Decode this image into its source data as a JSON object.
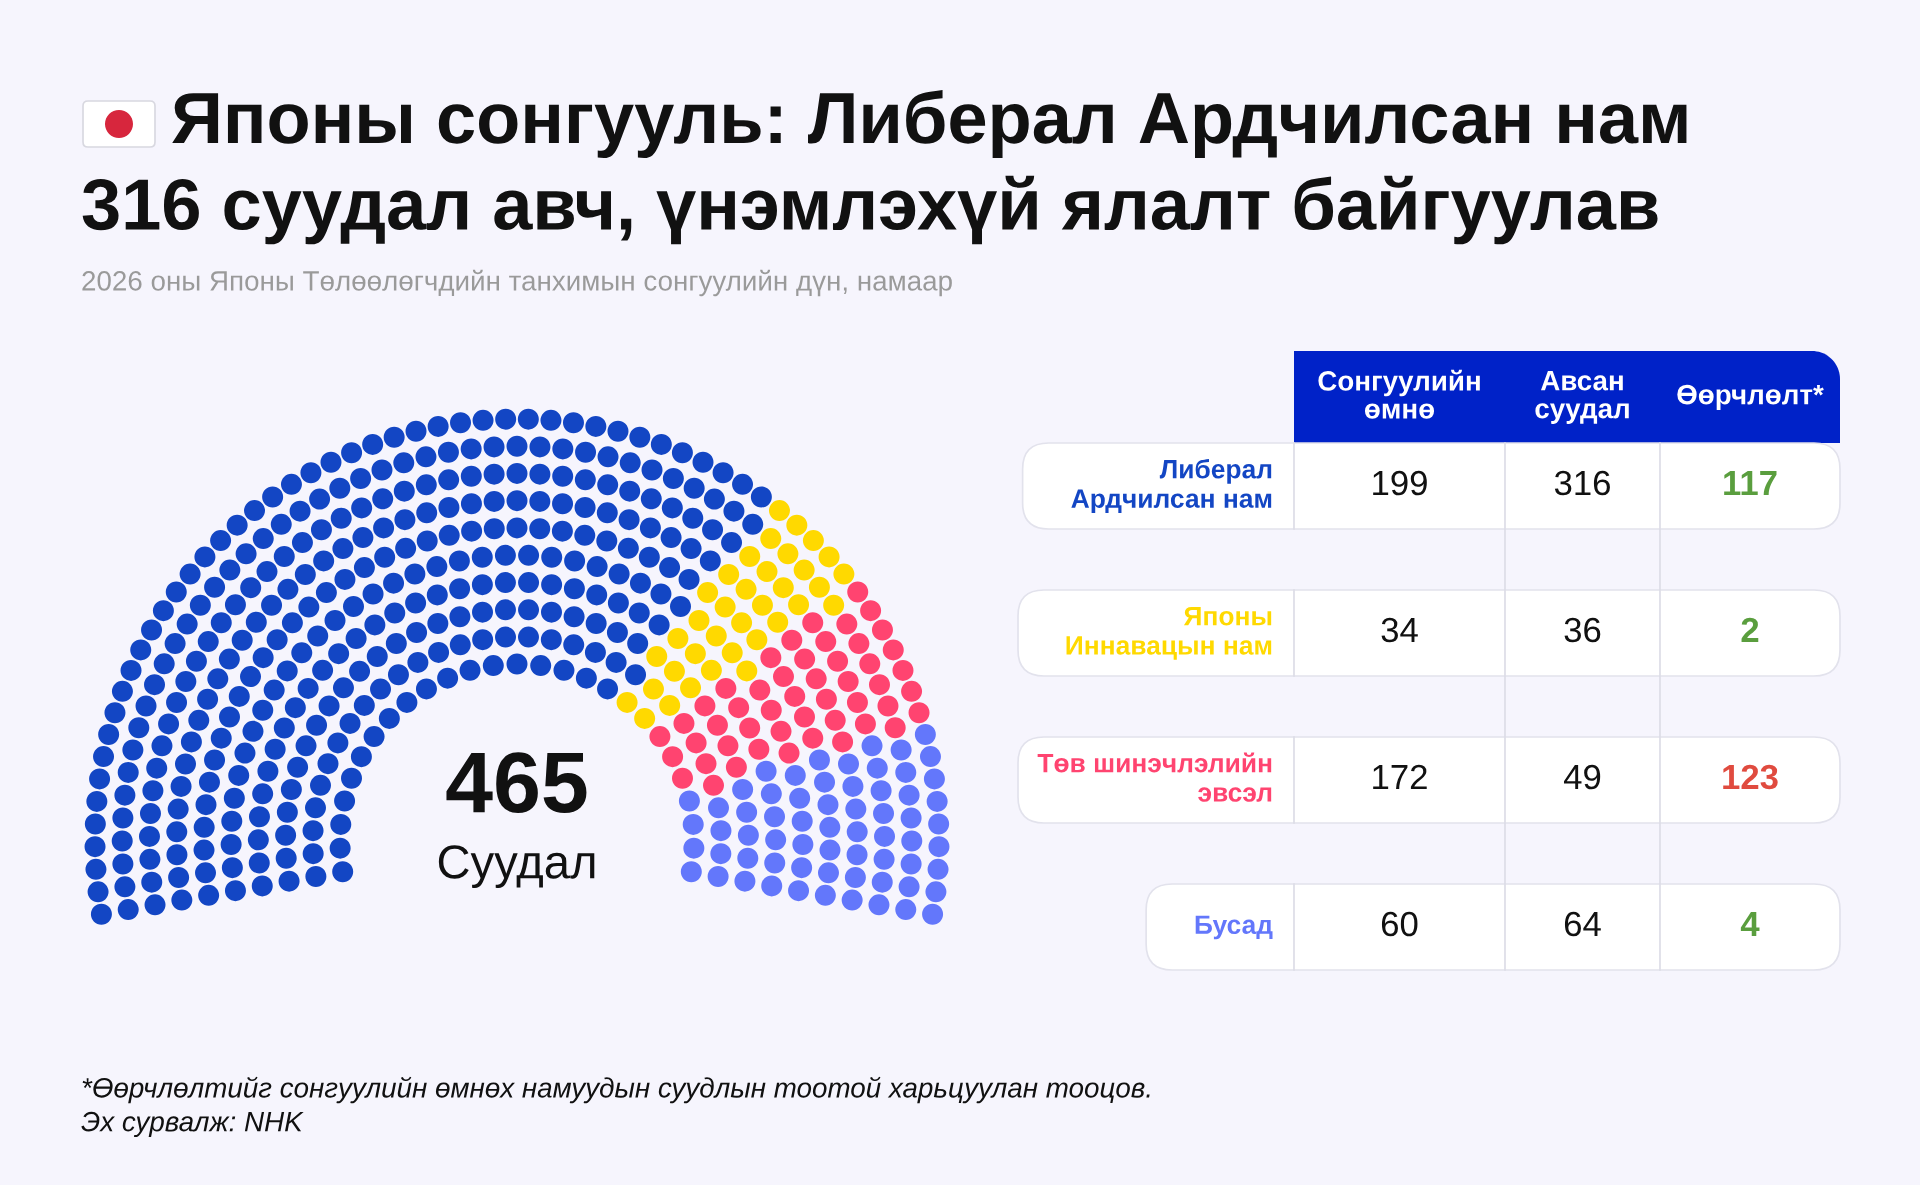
{
  "chart_data": {
    "type": "other",
    "title": "Японы сонгууль: Либерал Ардчилсан нам 316 суудал авч, үнэмлэхүй ялалт байгуулав",
    "subtitle": "2026 оны Японы Төлөөлөгчдийн танхимын сонгуулийн дүн, намаар",
    "categories": [
      "Либерал Ардчилсан нам",
      "Японы Иннавацын нам",
      "Төв шинэчлэлийн эвсэл",
      "Бусад"
    ],
    "colors": [
      "#1346c4",
      "#ffd900",
      "#ff4470",
      "#6377fb"
    ],
    "series": [
      {
        "name": "Сонгуулийн өмнө",
        "values": [
          199,
          34,
          172,
          60
        ]
      },
      {
        "name": "Авсан суудал",
        "values": [
          316,
          36,
          49,
          64
        ]
      },
      {
        "name": "Өөрчлөлт*",
        "colors": [
          "#5a9e3e",
          "#5a9e3e",
          "#e04b3f",
          "#5a9e3e"
        ],
        "values": [
          117,
          2,
          123,
          4
        ]
      }
    ],
    "data_labels": true,
    "annotations": [
      "465",
      "Суудал",
      "*Өөрчлөлтийг сонгуулийн өмнөх намуудын суудлын тоотой харьцуулан тооцов.",
      "Эх сурвалж: NHK"
    ]
  }
}
